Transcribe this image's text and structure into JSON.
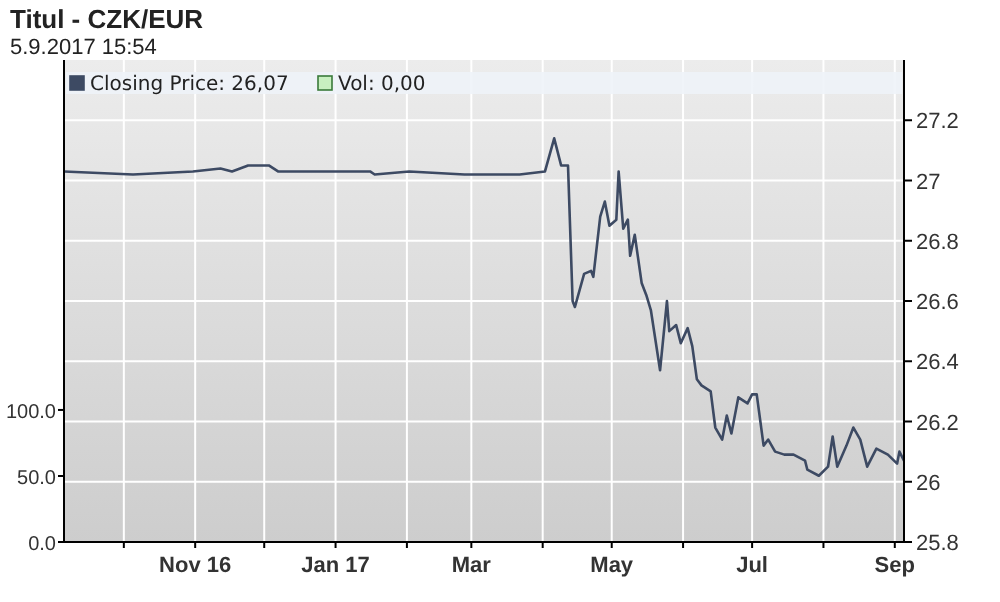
{
  "chart_data": {
    "type": "line",
    "title": "Titul - CZK/EUR",
    "subtitle": "5.9.2017 15:54",
    "x": [
      "2016-09-05",
      "2016-10-05",
      "2016-10-31",
      "2016-11-12",
      "2016-11-17",
      "2016-11-24",
      "2016-11-29",
      "2016-12-03",
      "2016-12-07",
      "2016-12-29",
      "2017-01-16",
      "2017-01-18",
      "2017-02-02",
      "2017-02-26",
      "2017-03-22",
      "2017-04-02",
      "2017-04-06",
      "2017-04-09",
      "2017-04-12",
      "2017-04-14",
      "2017-04-15",
      "2017-04-19",
      "2017-04-22",
      "2017-04-23",
      "2017-04-26",
      "2017-04-28",
      "2017-04-30",
      "2017-05-03",
      "2017-05-04",
      "2017-05-06",
      "2017-05-08",
      "2017-05-09",
      "2017-05-11",
      "2017-05-14",
      "2017-05-16",
      "2017-05-18",
      "2017-05-22",
      "2017-05-25",
      "2017-05-26",
      "2017-05-29",
      "2017-05-31",
      "2017-06-03",
      "2017-06-05",
      "2017-06-07",
      "2017-06-09",
      "2017-06-13",
      "2017-06-15",
      "2017-06-18",
      "2017-06-20",
      "2017-06-22",
      "2017-06-25",
      "2017-06-29",
      "2017-07-01",
      "2017-07-03",
      "2017-07-06",
      "2017-07-08",
      "2017-07-11",
      "2017-07-15",
      "2017-07-19",
      "2017-07-24",
      "2017-07-25",
      "2017-07-30",
      "2017-08-03",
      "2017-08-05",
      "2017-08-07",
      "2017-08-11",
      "2017-08-14",
      "2017-08-17",
      "2017-08-20",
      "2017-08-24",
      "2017-08-29",
      "2017-09-02",
      "2017-09-03",
      "2017-09-05"
    ],
    "series": [
      {
        "name": "Closing Price: 26,07",
        "color": "#3d4a63",
        "values": [
          27.03,
          27.02,
          27.03,
          27.04,
          27.03,
          27.05,
          27.05,
          27.05,
          27.03,
          27.03,
          27.03,
          27.02,
          27.03,
          27.02,
          27.02,
          27.03,
          27.14,
          27.05,
          27.05,
          26.6,
          26.58,
          26.69,
          26.7,
          26.68,
          26.88,
          26.93,
          26.85,
          26.87,
          27.03,
          26.84,
          26.87,
          26.75,
          26.82,
          26.66,
          26.62,
          26.57,
          26.37,
          26.6,
          26.5,
          26.52,
          26.46,
          26.51,
          26.45,
          26.34,
          26.32,
          26.3,
          26.18,
          26.14,
          26.22,
          26.16,
          26.28,
          26.26,
          26.29,
          26.29,
          26.12,
          26.14,
          26.1,
          26.09,
          26.09,
          26.07,
          26.04,
          26.02,
          26.05,
          26.15,
          26.05,
          26.12,
          26.18,
          26.14,
          26.05,
          26.11,
          26.09,
          26.06,
          26.1,
          26.07
        ]
      },
      {
        "name": "Vol: 0,00",
        "type": "bar",
        "axis": "y2",
        "color": "#c8f0c0",
        "x": [
          "2017-09-05"
        ],
        "values": [
          0
        ]
      }
    ],
    "xlim": [
      "2016-09-05",
      "2017-09-05"
    ],
    "xticks": [
      {
        "value": "2016-10-01",
        "label": null
      },
      {
        "value": "2016-11-01",
        "label": "Nov 16"
      },
      {
        "value": "2016-12-01",
        "label": null
      },
      {
        "value": "2017-01-01",
        "label": "Jan 17"
      },
      {
        "value": "2017-02-01",
        "label": null
      },
      {
        "value": "2017-03-01",
        "label": "Mar"
      },
      {
        "value": "2017-04-01",
        "label": null
      },
      {
        "value": "2017-05-01",
        "label": "May"
      },
      {
        "value": "2017-06-01",
        "label": null
      },
      {
        "value": "2017-07-01",
        "label": "Jul"
      },
      {
        "value": "2017-08-01",
        "label": null
      },
      {
        "value": "2017-09-01",
        "label": "Sep"
      }
    ],
    "ylim": [
      25.8,
      27.4
    ],
    "yticks": [
      25.8,
      26,
      26.2,
      26.4,
      26.6,
      26.8,
      27,
      27.2
    ],
    "y2lim": [
      0,
      365
    ],
    "y2ticks": [
      {
        "value": 0,
        "label": "0.0"
      },
      {
        "value": 50,
        "label": "50.0"
      },
      {
        "value": 100,
        "label": "100.0"
      }
    ],
    "grid": true,
    "legend": "top left"
  }
}
